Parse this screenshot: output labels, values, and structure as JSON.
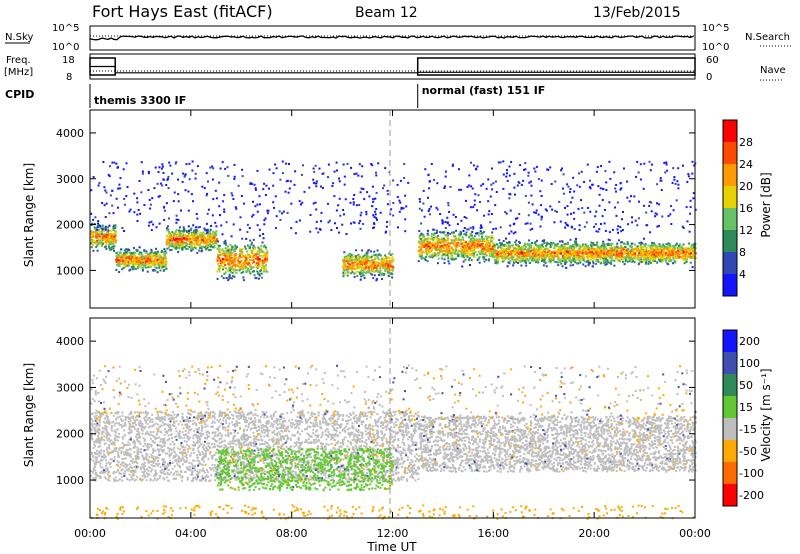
{
  "header": {
    "station": "Fort Hays East (fitACF)",
    "beam": "Beam 12",
    "date": "13/Feb/2015"
  },
  "labels": {
    "nsky": "N.Sky",
    "nsearch": "N.Search",
    "freq": "Freq.",
    "mhz": "[MHz]",
    "nave": "Nave",
    "cpid": "CPID",
    "nsky_ticks": [
      "10^5",
      "10^0"
    ],
    "nsearch_ticks": [
      "10^5",
      "10^0"
    ],
    "freq_ticks": [
      "18",
      "8"
    ],
    "nave_ticks": [
      "60",
      "0"
    ]
  },
  "cpid_segments": [
    {
      "label": "themis 3300 IF",
      "start_h": 0
    },
    {
      "label": "normal (fast) 151 IF",
      "start_h": 13
    }
  ],
  "power_legend": {
    "label": "Power [dB]",
    "ticks": [
      "28",
      "24",
      "20",
      "16",
      "12",
      "8",
      "4"
    ]
  },
  "velocity_legend": {
    "label": "Velocity [m s⁻¹]",
    "ticks": [
      "200",
      "100",
      "50",
      "15",
      "-15",
      "-50",
      "-100",
      "-200"
    ]
  },
  "chart_data": {
    "type": "heatmap",
    "x": {
      "label": "Time UT",
      "range_h": [
        0,
        24
      ],
      "ticks": [
        "00:00",
        "04:00",
        "08:00",
        "12:00",
        "16:00",
        "20:00",
        "00:00"
      ]
    },
    "y": {
      "label": "Slant Range [km]",
      "range_km": [
        180,
        4500
      ],
      "ticks": [
        "1000",
        "2000",
        "3000",
        "4000"
      ]
    },
    "freq_mhz": [
      {
        "from_h": 0,
        "to_h": 1,
        "value": 13
      },
      {
        "from_h": 1,
        "to_h": 13,
        "value": 10.5
      },
      {
        "from_h": 13,
        "to_h": 24,
        "value": 10.7
      }
    ],
    "power_colors": [
      "#1414ff",
      "#2f48b4",
      "#2e8b57",
      "#66c266",
      "#e6d200",
      "#ff9a00",
      "#ff4a00",
      "#ff0000"
    ],
    "velocity_colors": [
      "#ff0000",
      "#ff6a00",
      "#ffaa00",
      "#bebebe",
      "#62c832",
      "#2e8b57",
      "#3f4fb0",
      "#1414ff"
    ],
    "power_bands": [
      {
        "from_h": 0,
        "to_h": 1,
        "center_km": 1750,
        "width_km": 250
      },
      {
        "from_h": 1,
        "to_h": 3,
        "center_km": 1250,
        "width_km": 200
      },
      {
        "from_h": 3,
        "to_h": 5,
        "center_km": 1700,
        "width_km": 220
      },
      {
        "from_h": 5,
        "to_h": 7,
        "center_km": 1250,
        "width_km": 350
      },
      {
        "from_h": 10,
        "to_h": 12,
        "center_km": 1150,
        "width_km": 250
      },
      {
        "from_h": 13,
        "to_h": 16,
        "center_km": 1550,
        "width_km": 300
      },
      {
        "from_h": 16,
        "to_h": 24,
        "center_km": 1400,
        "width_km": 220
      }
    ],
    "velocity_regions": [
      {
        "from_h": 0,
        "to_h": 13,
        "range_km": [
          1000,
          2500
        ],
        "class": "ground",
        "value": 0
      },
      {
        "from_h": 5,
        "to_h": 12,
        "range_km": [
          800,
          1700
        ],
        "class": "flow",
        "value": 30
      },
      {
        "from_h": 13,
        "to_h": 24,
        "range_km": [
          1200,
          2400
        ],
        "class": "ground",
        "value": 0
      }
    ]
  }
}
